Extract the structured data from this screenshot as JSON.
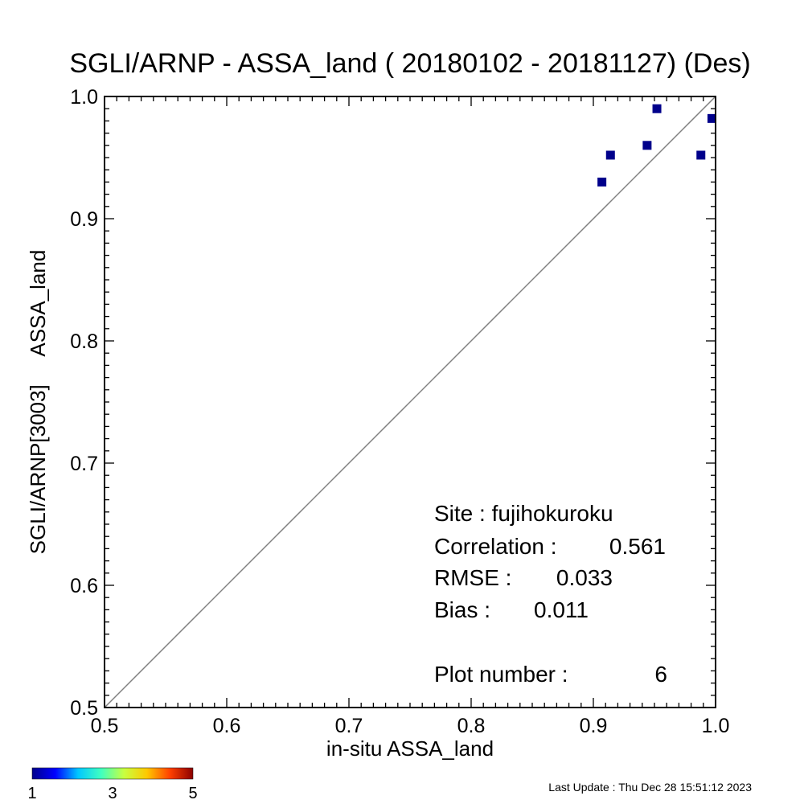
{
  "chart_data": {
    "type": "scatter",
    "title": "SGLI/ARNP - ASSA_land ( 20180102 - 20181127) (Des)",
    "xlabel": "in-situ ASSA_land",
    "ylabel": "SGLI/ARNP[3003]     ASSA_land",
    "xlim": [
      0.5,
      1.0
    ],
    "ylim": [
      0.5,
      1.0
    ],
    "x_ticks": [
      "0.5",
      "0.6",
      "0.7",
      "0.8",
      "0.9",
      "1.0"
    ],
    "y_ticks": [
      "0.5",
      "0.6",
      "0.7",
      "0.8",
      "0.9",
      "1.0"
    ],
    "reference_line": "1:1",
    "point_color": "#00008b",
    "points": [
      {
        "x": 0.907,
        "y": 0.93
      },
      {
        "x": 0.914,
        "y": 0.952
      },
      {
        "x": 0.944,
        "y": 0.96
      },
      {
        "x": 0.952,
        "y": 0.99
      },
      {
        "x": 0.988,
        "y": 0.952
      },
      {
        "x": 0.997,
        "y": 0.982
      }
    ],
    "stats": {
      "site": "Site : fujihokuroku",
      "correlation_label": "Correlation :",
      "correlation_value": "0.561",
      "rmse_label": "RMSE :",
      "rmse_value": "0.033",
      "bias_label": "Bias :",
      "bias_value": "0.011",
      "plot_number_label": "Plot number :",
      "plot_number_value": "6"
    },
    "colorbar": {
      "ticks": [
        "1",
        "3",
        "5"
      ],
      "colors": [
        "#00008b",
        "#0000ff",
        "#00c8ff",
        "#40ffc0",
        "#c8ff40",
        "#ffc800",
        "#ff4000",
        "#8b0000"
      ]
    },
    "last_update": "Last Update : Thu Dec 28 15:51:12 2023"
  }
}
